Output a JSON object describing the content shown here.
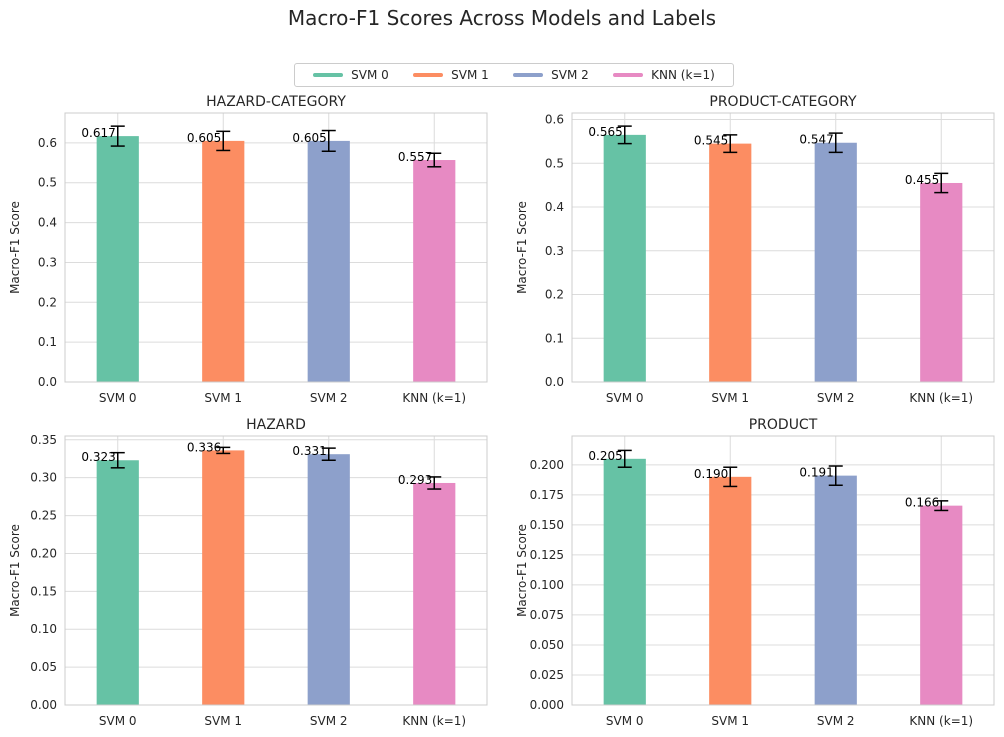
{
  "figure": {
    "title": "Macro-F1 Scores Across Models and Labels"
  },
  "legend": {
    "position": "top-center",
    "items": [
      {
        "label": "SVM 0",
        "color": "#66c2a5"
      },
      {
        "label": "SVM 1",
        "color": "#fc8d62"
      },
      {
        "label": "SVM 2",
        "color": "#8da0cb"
      },
      {
        "label": "KNN (k=1)",
        "color": "#e78ac3"
      }
    ]
  },
  "chart_data": [
    {
      "type": "bar",
      "title": "HAZARD-CATEGORY",
      "ylabel": "Macro-F1 Score",
      "xlabel": "",
      "categories": [
        "SVM 0",
        "SVM 1",
        "SVM 2",
        "KNN (k=1)"
      ],
      "values": [
        0.617,
        0.605,
        0.605,
        0.557
      ],
      "value_labels": [
        "0.617",
        "0.605",
        "0.605",
        "0.557"
      ],
      "errors": [
        0.025,
        0.024,
        0.026,
        0.017
      ],
      "ylim": [
        0,
        0.675
      ],
      "yticks": [
        "0.0",
        "0.1",
        "0.2",
        "0.3",
        "0.4",
        "0.5",
        "0.6"
      ],
      "ytick_values": [
        0,
        0.1,
        0.2,
        0.3,
        0.4,
        0.5,
        0.6
      ],
      "grid": true
    },
    {
      "type": "bar",
      "title": "PRODUCT-CATEGORY",
      "ylabel": "Macro-F1 Score",
      "xlabel": "",
      "categories": [
        "SVM 0",
        "SVM 1",
        "SVM 2",
        "KNN (k=1)"
      ],
      "values": [
        0.565,
        0.545,
        0.547,
        0.455
      ],
      "value_labels": [
        "0.565",
        "0.545",
        "0.547",
        "0.455"
      ],
      "errors": [
        0.02,
        0.02,
        0.022,
        0.022
      ],
      "ylim": [
        0,
        0.615
      ],
      "yticks": [
        "0.0",
        "0.1",
        "0.2",
        "0.3",
        "0.4",
        "0.5",
        "0.6"
      ],
      "ytick_values": [
        0,
        0.1,
        0.2,
        0.3,
        0.4,
        0.5,
        0.6
      ],
      "grid": true
    },
    {
      "type": "bar",
      "title": "HAZARD",
      "ylabel": "Macro-F1 Score",
      "xlabel": "",
      "categories": [
        "SVM 0",
        "SVM 1",
        "SVM 2",
        "KNN (k=1)"
      ],
      "values": [
        0.323,
        0.336,
        0.331,
        0.293
      ],
      "value_labels": [
        "0.323",
        "0.336",
        "0.331",
        "0.293"
      ],
      "errors": [
        0.01,
        0.004,
        0.008,
        0.008
      ],
      "ylim": [
        0,
        0.355
      ],
      "yticks": [
        "0.00",
        "0.05",
        "0.10",
        "0.15",
        "0.20",
        "0.25",
        "0.30",
        "0.35"
      ],
      "ytick_values": [
        0,
        0.05,
        0.1,
        0.15,
        0.2,
        0.25,
        0.3,
        0.35
      ],
      "grid": true
    },
    {
      "type": "bar",
      "title": "PRODUCT",
      "ylabel": "Macro-F1 Score",
      "xlabel": "",
      "categories": [
        "SVM 0",
        "SVM 1",
        "SVM 2",
        "KNN (k=1)"
      ],
      "values": [
        0.205,
        0.19,
        0.191,
        0.166
      ],
      "value_labels": [
        "0.205",
        "0.190",
        "0.191",
        "0.166"
      ],
      "errors": [
        0.007,
        0.008,
        0.008,
        0.004
      ],
      "ylim": [
        0,
        0.224
      ],
      "yticks": [
        "0.000",
        "0.025",
        "0.050",
        "0.075",
        "0.100",
        "0.125",
        "0.150",
        "0.175",
        "0.200"
      ],
      "ytick_values": [
        0,
        0.025,
        0.05,
        0.075,
        0.1,
        0.125,
        0.15,
        0.175,
        0.2
      ],
      "grid": true
    }
  ]
}
